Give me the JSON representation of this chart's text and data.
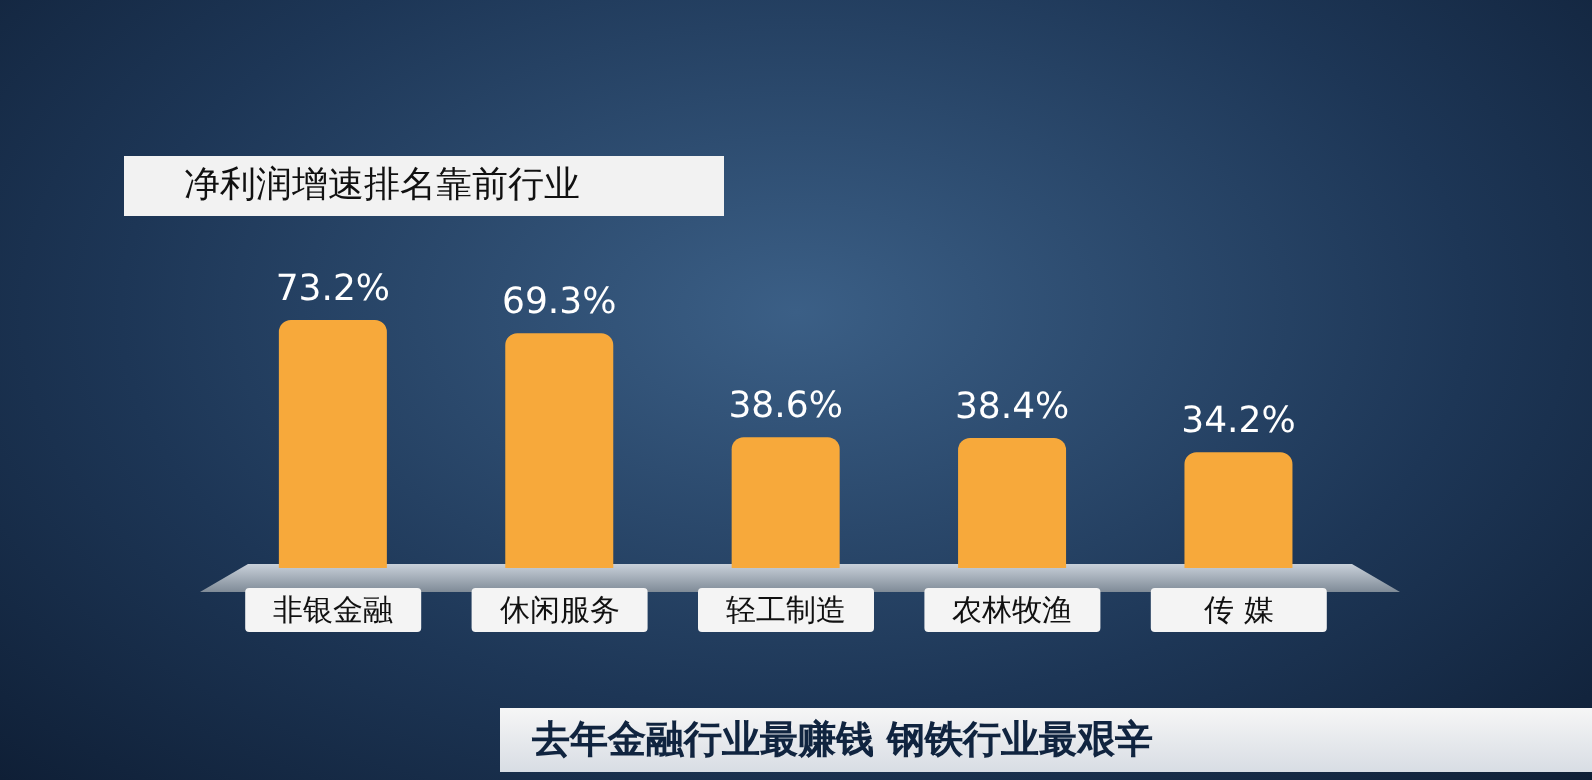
{
  "chart_data": {
    "type": "bar",
    "title": "净利润增速排名靠前行业",
    "categories": [
      "非银金融",
      "休闲服务",
      "轻工制造",
      "农林牧渔",
      "传 媒"
    ],
    "values": [
      73.2,
      69.3,
      38.6,
      38.4,
      34.2
    ],
    "value_labels": [
      "73.2%",
      "69.3%",
      "38.6%",
      "38.4%",
      "34.2%"
    ],
    "color": "#f7a93b",
    "annotations": [
      "去年金融行业最赚钱 钢铁行业最艰辛"
    ]
  }
}
